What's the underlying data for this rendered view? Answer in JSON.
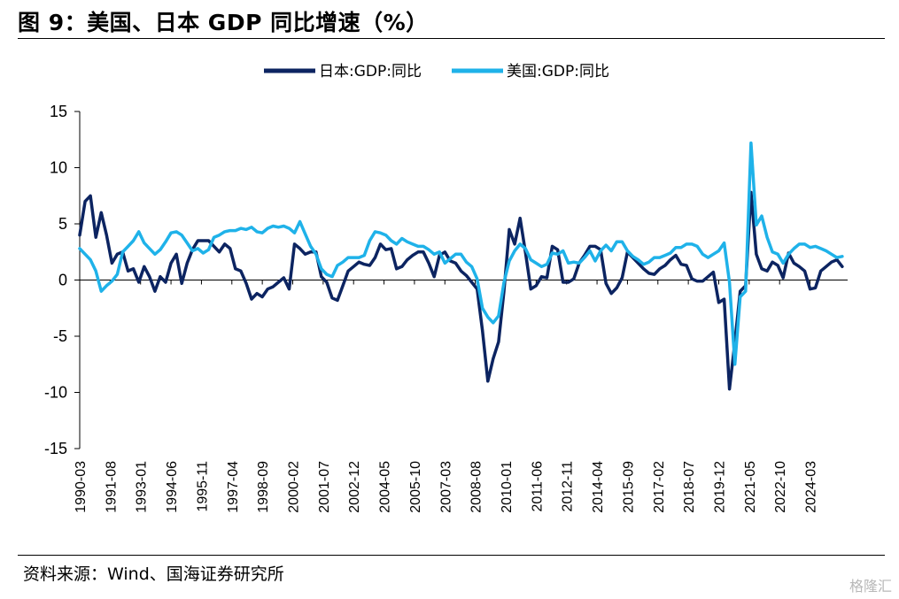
{
  "title": "图 9：美国、日本 GDP 同比增速（%）",
  "source": "资料来源：Wind、国海证券研究所",
  "watermark": "格隆汇",
  "chart_data": {
    "type": "line",
    "title": "",
    "xlabel": "",
    "ylabel": "",
    "ylim": [
      -15,
      15
    ],
    "yticks": [
      15,
      10,
      5,
      0,
      -5,
      -10,
      -15
    ],
    "xlim": [
      "1990-03",
      "2025-12"
    ],
    "xticks": [
      "1990-03",
      "1991-08",
      "1993-01",
      "1994-06",
      "1995-11",
      "1997-04",
      "1998-09",
      "2000-02",
      "2001-07",
      "2002-12",
      "2004-05",
      "2005-10",
      "2007-03",
      "2008-08",
      "2010-01",
      "2011-06",
      "2012-11",
      "2014-04",
      "2015-09",
      "2017-02",
      "2018-07",
      "2019-12",
      "2021-05",
      "2022-10",
      "2024-03"
    ],
    "grid": false,
    "legend_position": "top-center",
    "series": [
      {
        "name": "日本:GDP:同比",
        "color": "#0c2461",
        "points": [
          [
            "1990-03",
            4.0
          ],
          [
            "1990-06",
            7.0
          ],
          [
            "1990-09",
            7.5
          ],
          [
            "1990-12",
            3.8
          ],
          [
            "1991-03",
            6.0
          ],
          [
            "1991-06",
            4.0
          ],
          [
            "1991-09",
            1.5
          ],
          [
            "1991-12",
            2.3
          ],
          [
            "1992-03",
            2.5
          ],
          [
            "1992-06",
            0.8
          ],
          [
            "1992-09",
            1.0
          ],
          [
            "1992-12",
            -0.2
          ],
          [
            "1993-03",
            1.2
          ],
          [
            "1993-06",
            0.3
          ],
          [
            "1993-09",
            -1.0
          ],
          [
            "1993-12",
            0.3
          ],
          [
            "1994-03",
            -0.2
          ],
          [
            "1994-06",
            1.5
          ],
          [
            "1994-09",
            2.3
          ],
          [
            "1994-12",
            -0.3
          ],
          [
            "1995-03",
            1.5
          ],
          [
            "1995-06",
            2.7
          ],
          [
            "1995-09",
            3.5
          ],
          [
            "1995-12",
            3.5
          ],
          [
            "1996-03",
            3.5
          ],
          [
            "1996-06",
            3.0
          ],
          [
            "1996-09",
            2.5
          ],
          [
            "1996-12",
            3.2
          ],
          [
            "1997-03",
            2.8
          ],
          [
            "1997-06",
            1.0
          ],
          [
            "1997-09",
            0.8
          ],
          [
            "1997-12",
            -0.3
          ],
          [
            "1998-03",
            -1.7
          ],
          [
            "1998-06",
            -1.2
          ],
          [
            "1998-09",
            -1.5
          ],
          [
            "1998-12",
            -0.8
          ],
          [
            "1999-03",
            -0.6
          ],
          [
            "1999-06",
            -0.2
          ],
          [
            "1999-09",
            0.2
          ],
          [
            "1999-12",
            -0.8
          ],
          [
            "2000-03",
            3.2
          ],
          [
            "2000-06",
            2.8
          ],
          [
            "2000-09",
            2.3
          ],
          [
            "2000-12",
            2.5
          ],
          [
            "2001-03",
            2.5
          ],
          [
            "2001-06",
            0.3
          ],
          [
            "2001-09",
            -0.2
          ],
          [
            "2001-12",
            -1.6
          ],
          [
            "2002-03",
            -1.8
          ],
          [
            "2002-06",
            -0.5
          ],
          [
            "2002-09",
            0.8
          ],
          [
            "2002-12",
            1.2
          ],
          [
            "2003-03",
            1.6
          ],
          [
            "2003-06",
            1.4
          ],
          [
            "2003-09",
            1.3
          ],
          [
            "2003-12",
            2.0
          ],
          [
            "2004-03",
            3.2
          ],
          [
            "2004-06",
            2.7
          ],
          [
            "2004-09",
            2.8
          ],
          [
            "2004-12",
            1.0
          ],
          [
            "2005-03",
            1.2
          ],
          [
            "2005-06",
            1.8
          ],
          [
            "2005-09",
            2.2
          ],
          [
            "2005-12",
            2.5
          ],
          [
            "2006-03",
            2.5
          ],
          [
            "2006-06",
            1.5
          ],
          [
            "2006-09",
            0.3
          ],
          [
            "2006-12",
            2.2
          ],
          [
            "2007-03",
            2.5
          ],
          [
            "2007-06",
            1.7
          ],
          [
            "2007-09",
            1.5
          ],
          [
            "2007-12",
            0.8
          ],
          [
            "2008-03",
            0.4
          ],
          [
            "2008-06",
            -0.2
          ],
          [
            "2008-09",
            -0.8
          ],
          [
            "2008-12",
            -4.5
          ],
          [
            "2009-03",
            -9.0
          ],
          [
            "2009-06",
            -7.0
          ],
          [
            "2009-09",
            -5.5
          ],
          [
            "2009-12",
            -1.0
          ],
          [
            "2010-03",
            4.5
          ],
          [
            "2010-06",
            3.2
          ],
          [
            "2010-09",
            5.5
          ],
          [
            "2010-12",
            2.5
          ],
          [
            "2011-03",
            -0.8
          ],
          [
            "2011-06",
            -0.5
          ],
          [
            "2011-09",
            0.3
          ],
          [
            "2011-12",
            0.2
          ],
          [
            "2012-03",
            3.0
          ],
          [
            "2012-06",
            2.7
          ],
          [
            "2012-09",
            -0.2
          ],
          [
            "2012-12",
            -0.2
          ],
          [
            "2013-03",
            0.1
          ],
          [
            "2013-06",
            1.5
          ],
          [
            "2013-09",
            2.2
          ],
          [
            "2013-12",
            3.0
          ],
          [
            "2014-03",
            3.0
          ],
          [
            "2014-06",
            2.7
          ],
          [
            "2014-09",
            -0.3
          ],
          [
            "2014-12",
            -1.2
          ],
          [
            "2015-03",
            -0.7
          ],
          [
            "2015-06",
            0.2
          ],
          [
            "2015-09",
            2.5
          ],
          [
            "2015-12",
            2.0
          ],
          [
            "2016-03",
            1.5
          ],
          [
            "2016-06",
            1.0
          ],
          [
            "2016-09",
            0.6
          ],
          [
            "2016-12",
            0.5
          ],
          [
            "2017-03",
            1.0
          ],
          [
            "2017-06",
            1.3
          ],
          [
            "2017-09",
            1.8
          ],
          [
            "2017-12",
            2.2
          ],
          [
            "2018-03",
            1.4
          ],
          [
            "2018-06",
            1.3
          ],
          [
            "2018-09",
            0.1
          ],
          [
            "2018-12",
            -0.1
          ],
          [
            "2019-03",
            -0.1
          ],
          [
            "2019-06",
            0.3
          ],
          [
            "2019-09",
            0.7
          ],
          [
            "2019-12",
            -2.0
          ],
          [
            "2020-03",
            -1.7
          ],
          [
            "2020-06",
            -9.7
          ],
          [
            "2020-09",
            -5.5
          ],
          [
            "2020-12",
            -1.0
          ],
          [
            "2021-03",
            -0.5
          ],
          [
            "2021-06",
            7.8
          ],
          [
            "2021-09",
            2.3
          ],
          [
            "2021-12",
            1.0
          ],
          [
            "2022-03",
            0.8
          ],
          [
            "2022-06",
            1.6
          ],
          [
            "2022-09",
            1.3
          ],
          [
            "2022-12",
            0.2
          ],
          [
            "2023-03",
            2.4
          ],
          [
            "2023-06",
            1.5
          ],
          [
            "2023-09",
            1.2
          ],
          [
            "2023-12",
            0.8
          ],
          [
            "2024-03",
            -0.8
          ],
          [
            "2024-06",
            -0.7
          ],
          [
            "2024-09",
            0.8
          ],
          [
            "2024-12",
            1.2
          ],
          [
            "2025-03",
            1.6
          ],
          [
            "2025-06",
            1.8
          ],
          [
            "2025-09",
            1.2
          ]
        ]
      },
      {
        "name": "美国:GDP:同比",
        "color": "#1fb2e9",
        "points": [
          [
            "1990-03",
            2.8
          ],
          [
            "1990-06",
            2.3
          ],
          [
            "1990-09",
            1.8
          ],
          [
            "1990-12",
            0.8
          ],
          [
            "1991-03",
            -1.0
          ],
          [
            "1991-06",
            -0.5
          ],
          [
            "1991-09",
            -0.1
          ],
          [
            "1991-12",
            0.5
          ],
          [
            "1992-03",
            2.5
          ],
          [
            "1992-06",
            3.0
          ],
          [
            "1992-09",
            3.5
          ],
          [
            "1992-12",
            4.3
          ],
          [
            "1993-03",
            3.3
          ],
          [
            "1993-06",
            2.8
          ],
          [
            "1993-09",
            2.3
          ],
          [
            "1993-12",
            2.7
          ],
          [
            "1994-03",
            3.4
          ],
          [
            "1994-06",
            4.2
          ],
          [
            "1994-09",
            4.3
          ],
          [
            "1994-12",
            4.0
          ],
          [
            "1995-03",
            3.3
          ],
          [
            "1995-06",
            2.6
          ],
          [
            "1995-09",
            2.8
          ],
          [
            "1995-12",
            2.4
          ],
          [
            "1996-03",
            2.7
          ],
          [
            "1996-06",
            3.8
          ],
          [
            "1996-09",
            4.0
          ],
          [
            "1996-12",
            4.3
          ],
          [
            "1997-03",
            4.4
          ],
          [
            "1997-06",
            4.4
          ],
          [
            "1997-09",
            4.6
          ],
          [
            "1997-12",
            4.5
          ],
          [
            "1998-03",
            4.7
          ],
          [
            "1998-06",
            4.3
          ],
          [
            "1998-09",
            4.2
          ],
          [
            "1998-12",
            4.6
          ],
          [
            "1999-03",
            4.8
          ],
          [
            "1999-06",
            4.7
          ],
          [
            "1999-09",
            4.8
          ],
          [
            "1999-12",
            4.6
          ],
          [
            "2000-03",
            4.2
          ],
          [
            "2000-06",
            5.2
          ],
          [
            "2000-09",
            4.1
          ],
          [
            "2000-12",
            3.0
          ],
          [
            "2001-03",
            2.3
          ],
          [
            "2001-06",
            1.0
          ],
          [
            "2001-09",
            0.5
          ],
          [
            "2001-12",
            0.3
          ],
          [
            "2002-03",
            1.3
          ],
          [
            "2002-06",
            1.6
          ],
          [
            "2002-09",
            2.0
          ],
          [
            "2002-12",
            2.0
          ],
          [
            "2003-03",
            2.0
          ],
          [
            "2003-06",
            2.2
          ],
          [
            "2003-09",
            3.5
          ],
          [
            "2003-12",
            4.3
          ],
          [
            "2004-03",
            4.2
          ],
          [
            "2004-06",
            4.0
          ],
          [
            "2004-09",
            3.5
          ],
          [
            "2004-12",
            3.2
          ],
          [
            "2005-03",
            3.7
          ],
          [
            "2005-06",
            3.4
          ],
          [
            "2005-09",
            3.2
          ],
          [
            "2005-12",
            3.0
          ],
          [
            "2006-03",
            3.0
          ],
          [
            "2006-06",
            2.7
          ],
          [
            "2006-09",
            2.3
          ],
          [
            "2006-12",
            2.5
          ],
          [
            "2007-03",
            1.5
          ],
          [
            "2007-06",
            1.9
          ],
          [
            "2007-09",
            2.3
          ],
          [
            "2007-12",
            2.3
          ],
          [
            "2008-03",
            1.6
          ],
          [
            "2008-06",
            1.2
          ],
          [
            "2008-09",
            0.1
          ],
          [
            "2008-12",
            -2.5
          ],
          [
            "2009-03",
            -3.3
          ],
          [
            "2009-06",
            -3.8
          ],
          [
            "2009-09",
            -3.2
          ],
          [
            "2009-12",
            -0.2
          ],
          [
            "2010-03",
            1.7
          ],
          [
            "2010-06",
            2.6
          ],
          [
            "2010-09",
            3.2
          ],
          [
            "2010-12",
            2.8
          ],
          [
            "2011-03",
            1.8
          ],
          [
            "2011-06",
            1.5
          ],
          [
            "2011-09",
            1.2
          ],
          [
            "2011-12",
            1.4
          ],
          [
            "2012-03",
            2.4
          ],
          [
            "2012-06",
            2.3
          ],
          [
            "2012-09",
            2.6
          ],
          [
            "2012-12",
            1.5
          ],
          [
            "2013-03",
            1.6
          ],
          [
            "2013-06",
            1.5
          ],
          [
            "2013-09",
            2.0
          ],
          [
            "2013-12",
            2.6
          ],
          [
            "2014-03",
            1.7
          ],
          [
            "2014-06",
            2.6
          ],
          [
            "2014-09",
            3.1
          ],
          [
            "2014-12",
            2.6
          ],
          [
            "2015-03",
            3.4
          ],
          [
            "2015-06",
            3.4
          ],
          [
            "2015-09",
            2.6
          ],
          [
            "2015-12",
            2.1
          ],
          [
            "2016-03",
            1.8
          ],
          [
            "2016-06",
            1.4
          ],
          [
            "2016-09",
            1.6
          ],
          [
            "2016-12",
            2.0
          ],
          [
            "2017-03",
            2.0
          ],
          [
            "2017-06",
            2.2
          ],
          [
            "2017-09",
            2.4
          ],
          [
            "2017-12",
            2.9
          ],
          [
            "2018-03",
            2.9
          ],
          [
            "2018-06",
            3.2
          ],
          [
            "2018-09",
            3.2
          ],
          [
            "2018-12",
            3.0
          ],
          [
            "2019-03",
            2.3
          ],
          [
            "2019-06",
            2.0
          ],
          [
            "2019-09",
            2.3
          ],
          [
            "2019-12",
            2.6
          ],
          [
            "2020-03",
            3.3
          ],
          [
            "2020-06",
            -0.2
          ],
          [
            "2020-09",
            -7.5
          ],
          [
            "2020-12",
            -1.5
          ],
          [
            "2021-03",
            -1.0
          ],
          [
            "2021-06",
            12.2
          ],
          [
            "2021-09",
            4.9
          ],
          [
            "2021-12",
            5.7
          ],
          [
            "2022-03",
            3.8
          ],
          [
            "2022-06",
            2.5
          ],
          [
            "2022-09",
            2.3
          ],
          [
            "2022-12",
            1.5
          ],
          [
            "2023-03",
            2.3
          ],
          [
            "2023-06",
            2.8
          ],
          [
            "2023-09",
            3.2
          ],
          [
            "2023-12",
            3.2
          ],
          [
            "2024-03",
            2.9
          ],
          [
            "2024-06",
            3.0
          ],
          [
            "2024-09",
            2.8
          ],
          [
            "2024-12",
            2.6
          ],
          [
            "2025-03",
            2.3
          ],
          [
            "2025-06",
            2.0
          ],
          [
            "2025-09",
            2.1
          ]
        ]
      }
    ]
  }
}
